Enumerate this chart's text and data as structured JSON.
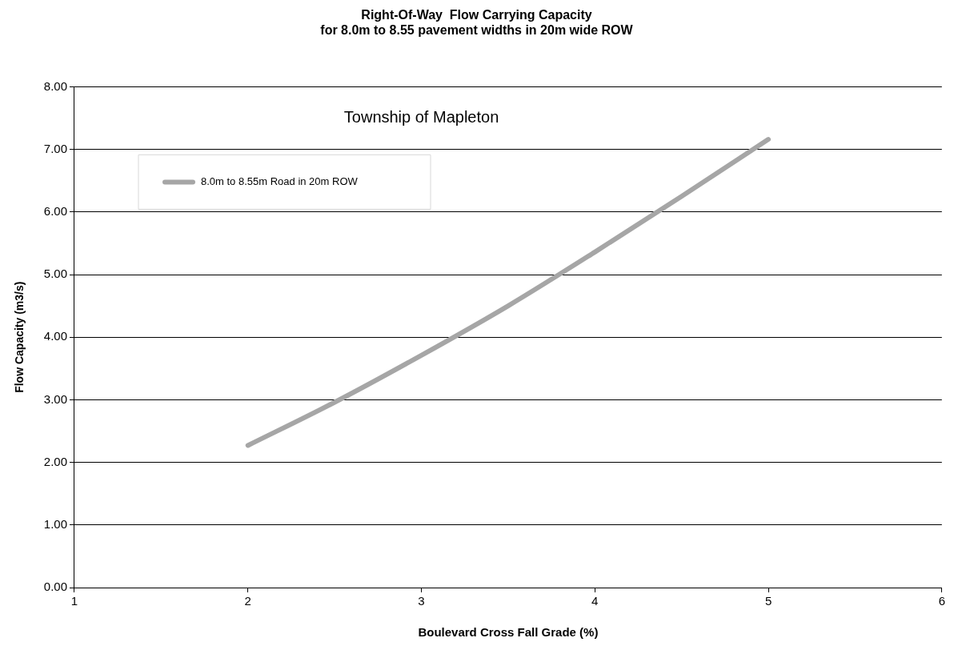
{
  "chart_data": {
    "type": "line",
    "title": "Right-Of-Way  Flow Carrying Capacity\nfor 8.0m to 8.55 pavement widths in 20m wide ROW",
    "xlabel": "Boulevard Cross Fall Grade (%)",
    "ylabel": "Flow Capacity (m3/s)",
    "annotations": [
      "Township of Mapleton"
    ],
    "x": [
      2,
      2.5,
      3,
      3.5,
      4,
      4.5,
      5
    ],
    "series": [
      {
        "name": "8.0m to 8.55m Road in 20m ROW",
        "color": "#a6a6a6",
        "values": [
          2.27,
          2.96,
          3.71,
          4.5,
          5.36,
          6.25,
          7.16
        ]
      }
    ],
    "xlim": [
      1,
      6
    ],
    "xticks": [
      1,
      2,
      3,
      4,
      5,
      6
    ],
    "ylim": [
      0,
      8
    ],
    "yticks": [
      {
        "value": 0,
        "label": "0.00"
      },
      {
        "value": 1,
        "label": "1.00"
      },
      {
        "value": 2,
        "label": "2.00"
      },
      {
        "value": 3,
        "label": "3.00"
      },
      {
        "value": 4,
        "label": "4.00"
      },
      {
        "value": 5,
        "label": "5.00"
      },
      {
        "value": 6,
        "label": "6.00"
      },
      {
        "value": 7,
        "label": "7.00"
      },
      {
        "value": 8,
        "label": "8.00"
      }
    ],
    "grid": "y",
    "legend": "top left",
    "marker": "none",
    "line_style": "solid"
  }
}
